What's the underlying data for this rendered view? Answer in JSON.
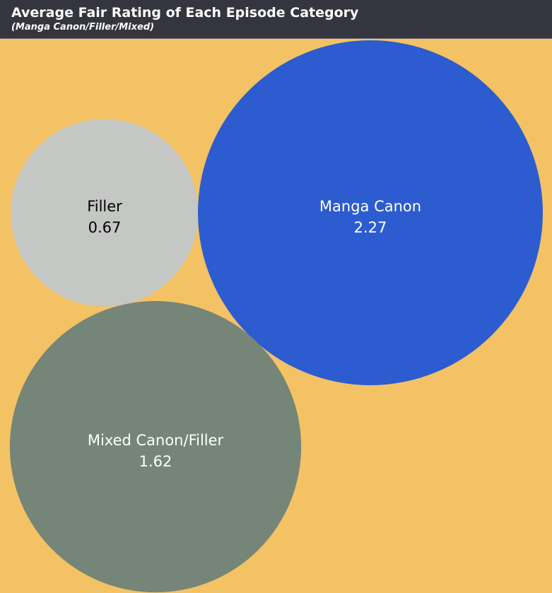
{
  "header": {
    "title": "Average Fair Rating of Each Episode Category",
    "subtitle": "(Manga Canon/Filler/Mixed)"
  },
  "colors": {
    "background": "#f3c265",
    "header_background": "#34353f"
  },
  "chart_data": {
    "type": "bubble",
    "title": "Average Fair Rating of Each Episode Category",
    "subtitle": "(Manga Canon/Filler/Mixed)",
    "series": [
      {
        "name": "Filler",
        "value": 0.67,
        "display_value": "0.67",
        "color": "#c5c7c5",
        "text_color": "#000000"
      },
      {
        "name": "Manga Canon",
        "value": 2.27,
        "display_value": "2.27",
        "color": "#2c5ccf",
        "text_color": "#ffffff"
      },
      {
        "name": "Mixed Canon/Filler",
        "value": 1.62,
        "display_value": "1.62",
        "color": "#758577",
        "text_color": "#ffffff"
      }
    ]
  }
}
